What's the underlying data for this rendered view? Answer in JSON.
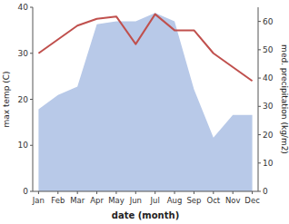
{
  "chart_data": {
    "type": "line",
    "categories": [
      "Jan",
      "Feb",
      "Mar",
      "Apr",
      "May",
      "Jun",
      "Jul",
      "Aug",
      "Sep",
      "Oct",
      "Nov",
      "Dec"
    ],
    "xlabel": "date (month)",
    "ylabel": "max temp (C)",
    "y2label": "med. precipitation (kg/m2)",
    "ylim": [
      0,
      40
    ],
    "yticks": [
      0,
      10,
      20,
      30,
      40
    ],
    "y2lim": [
      0,
      65
    ],
    "y2ticks": [
      0,
      10,
      20,
      30,
      40,
      50,
      60
    ],
    "series": [
      {
        "type": "area",
        "axis": "y2",
        "color": "#b8c9e8",
        "values": [
          29,
          34,
          37,
          59,
          60,
          60,
          63,
          60,
          36,
          19,
          27,
          27
        ]
      },
      {
        "type": "line",
        "color": "#c0504d",
        "values": [
          30,
          33,
          36,
          37.5,
          38,
          32,
          38.5,
          35,
          35,
          30,
          27,
          24
        ]
      }
    ]
  }
}
